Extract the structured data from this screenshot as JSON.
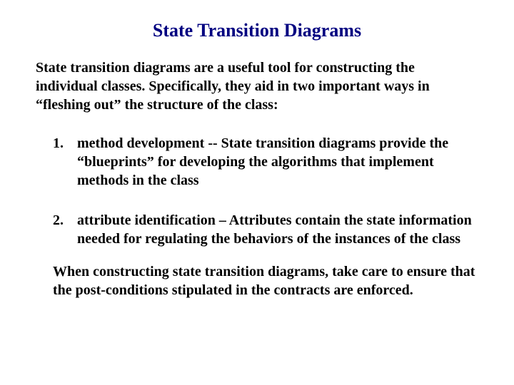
{
  "title": {
    "text": "State Transition Diagrams",
    "fontsize": 26,
    "color": "#000080",
    "weight": "bold"
  },
  "intro": {
    "text": "State transition diagrams are a useful tool for constructing the individual classes.  Specifically, they aid in two important ways in “fleshing out” the structure of the class:",
    "fontsize": 20,
    "color": "#000000"
  },
  "list": {
    "fontsize": 20,
    "color": "#000000",
    "items": [
      {
        "num": "1.",
        "text": "method development  -- State transition diagrams provide the “blueprints” for developing the algorithms that implement methods in the class"
      },
      {
        "num": "2.",
        "text": "attribute identification – Attributes contain the state information needed for regulating the behaviors of the instances of the class"
      }
    ]
  },
  "closing": {
    "text": "When constructing state transition diagrams, take care to ensure that the post-conditions stipulated in the contracts are enforced.",
    "fontsize": 20,
    "color": "#000000"
  },
  "background_color": "#ffffff"
}
